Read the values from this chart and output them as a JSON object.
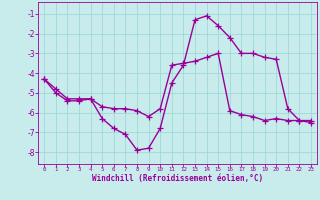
{
  "line1_x": [
    0,
    1,
    2,
    3,
    4,
    5,
    6,
    7,
    8,
    9,
    10,
    11,
    12,
    13,
    14,
    15,
    16,
    17,
    18,
    19,
    20,
    21,
    22,
    23
  ],
  "line1_y": [
    -4.3,
    -4.8,
    -5.3,
    -5.3,
    -5.3,
    -5.7,
    -5.8,
    -5.8,
    -5.9,
    -6.2,
    -5.8,
    -3.6,
    -3.5,
    -3.4,
    -3.2,
    -3.0,
    -5.9,
    -6.1,
    -6.2,
    -6.4,
    -6.3,
    -6.4,
    -6.4,
    -6.4
  ],
  "line2_x": [
    0,
    1,
    2,
    3,
    4,
    5,
    6,
    7,
    8,
    9,
    10,
    11,
    12,
    13,
    14,
    15,
    16,
    17,
    18,
    19,
    20,
    21,
    22,
    23
  ],
  "line2_y": [
    -4.3,
    -5.0,
    -5.4,
    -5.4,
    -5.3,
    -6.3,
    -6.8,
    -7.1,
    -7.9,
    -7.8,
    -6.8,
    -4.5,
    -3.6,
    -1.3,
    -1.1,
    -1.6,
    -2.2,
    -3.0,
    -3.0,
    -3.2,
    -3.3,
    -5.8,
    -6.4,
    -6.5
  ],
  "line_color": "#990099",
  "bg_color": "#c8ecec",
  "grid_color": "#a0d8d8",
  "ylabel_vals": [
    -1,
    -2,
    -3,
    -4,
    -5,
    -6,
    -7,
    -8
  ],
  "ylim": [
    -8.6,
    -0.4
  ],
  "xlim": [
    -0.5,
    23.5
  ],
  "xlabel": "Windchill (Refroidissement éolien,°C)",
  "xlabel_color": "#990099",
  "tick_color": "#990099",
  "marker": "+",
  "markersize": 4,
  "linewidth": 1.0
}
